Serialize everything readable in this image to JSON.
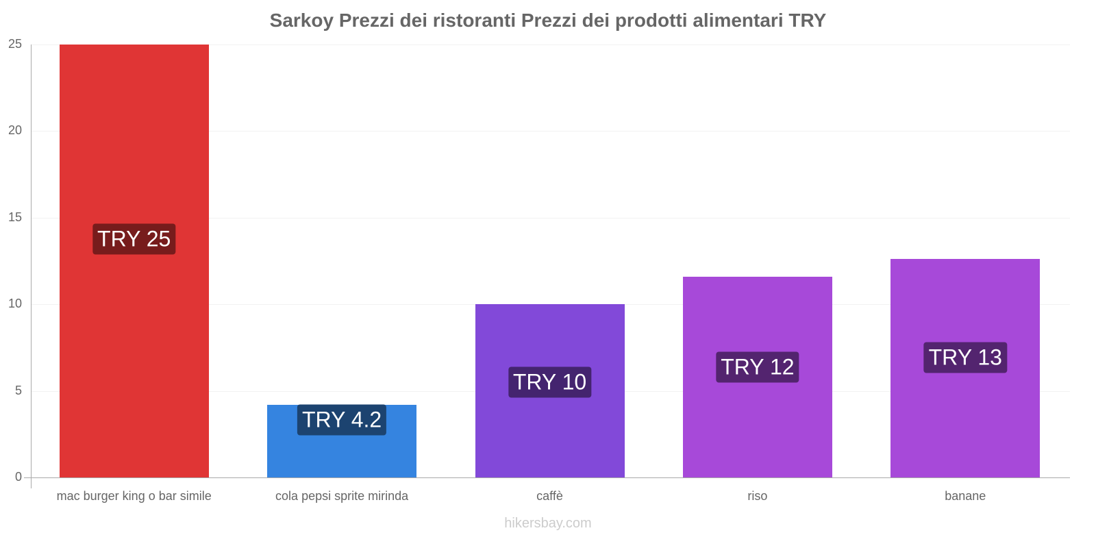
{
  "chart_data": {
    "type": "bar",
    "title": "Sarkoy Prezzi dei ristoranti Prezzi dei prodotti alimentari TRY",
    "xlabel": "",
    "ylabel": "",
    "ylim": [
      0,
      25
    ],
    "yticks": [
      "0",
      "5",
      "10",
      "15",
      "20",
      "25"
    ],
    "grid": true,
    "legend": null,
    "categories": [
      "mac burger king o bar simile",
      "cola pepsi sprite mirinda",
      "caffè",
      "riso",
      "banane"
    ],
    "values": [
      25,
      4.2,
      10,
      11.6,
      12.6
    ],
    "data_labels": [
      "TRY 25",
      "TRY 4.2",
      "TRY 10",
      "TRY 12",
      "TRY 13"
    ],
    "bar_colors": [
      "#e03535",
      "#3584e0",
      "#8249d9",
      "#a749d9",
      "#a749d9"
    ],
    "label_bg_colors": [
      "#771c1c",
      "#1c4370",
      "#44246f",
      "#53246f",
      "#53246f"
    ]
  },
  "watermark": "hikersbay.com"
}
